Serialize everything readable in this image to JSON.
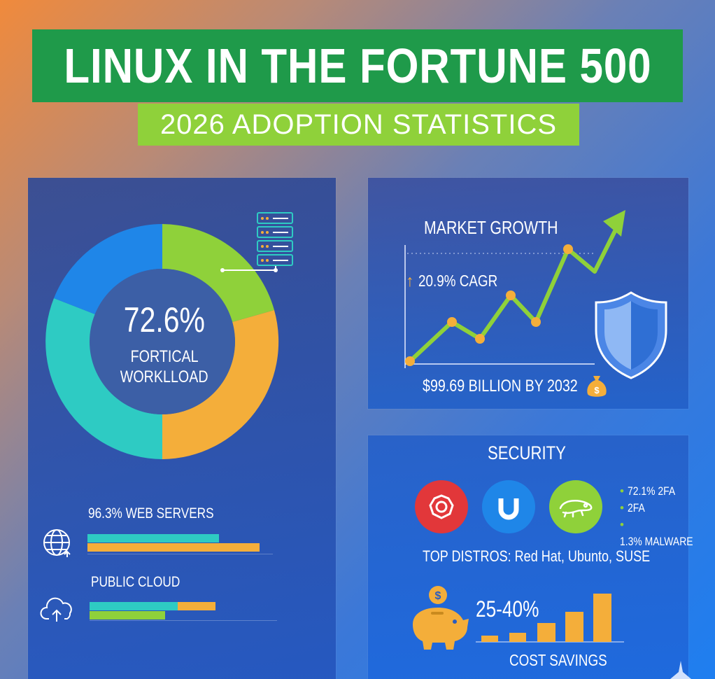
{
  "header": {
    "title": "LINUX IN THE FORTUNE 500",
    "subtitle": "2026 ADOPTION STATISTICS"
  },
  "workload": {
    "percent": "72.6%",
    "label_line1": "FORTICAL",
    "label_line2": "WORKLLOAD",
    "icon": "server-icon"
  },
  "web_servers": {
    "label": "96.3% WEB SERVERS",
    "icon": "globe-icon"
  },
  "public_cloud": {
    "label": "PUBLIC CLOUD",
    "icon": "cloud-upload-icon"
  },
  "market": {
    "heading": "MARKET GROWTH",
    "cagr": "20.9% CAGR",
    "forecast": "$99.69 BILLION BY 2032",
    "icons": [
      "up-arrow-icon",
      "shield-icon",
      "money-bag-icon"
    ]
  },
  "security": {
    "heading": "SECURITY",
    "bullets": [
      "72.1% 2FA",
      "2FA",
      "1.3% MALWARE"
    ],
    "distros": "TOP DISTROS: Red Hat, Ubunto, SUSE",
    "distro_icons": [
      "red-hat-icon",
      "ubuntu-icon",
      "suse-chameleon-icon"
    ]
  },
  "savings": {
    "range": "25-40%",
    "label": "COST SAVINGS",
    "icon": "piggy-bank-icon"
  },
  "colors": {
    "title_green": "#1f9a4a",
    "subtitle_green": "#8fd13a",
    "donut_green": "#8fd13a",
    "donut_orange": "#f4ae3a",
    "donut_teal": "#2ecbc3",
    "donut_blue": "#1f86e8",
    "line_green": "#8fd13a",
    "dot_orange": "#f4ae3a"
  }
}
